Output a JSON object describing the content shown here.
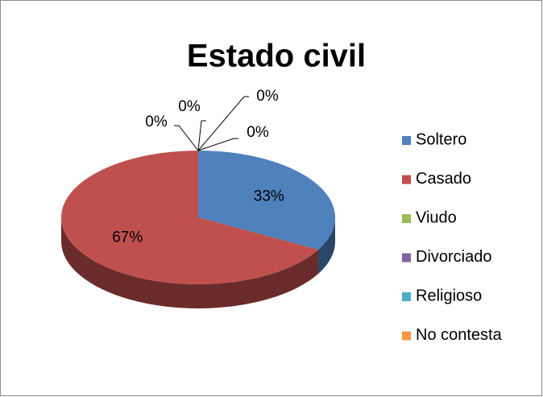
{
  "chart_data": {
    "type": "pie",
    "title": "Estado civil",
    "categories": [
      "Soltero",
      "Casado",
      "Viudo",
      "Divorciado",
      "Religioso",
      "No contesta"
    ],
    "values": [
      33,
      67,
      0,
      0,
      0,
      0
    ],
    "value_labels": [
      "33%",
      "67%",
      "0%",
      "0%",
      "0%",
      "0%"
    ],
    "colors": [
      "#4f81bd",
      "#c0504d",
      "#9bbb59",
      "#8064a2",
      "#4bacc6",
      "#f79646"
    ],
    "legend": "right"
  }
}
